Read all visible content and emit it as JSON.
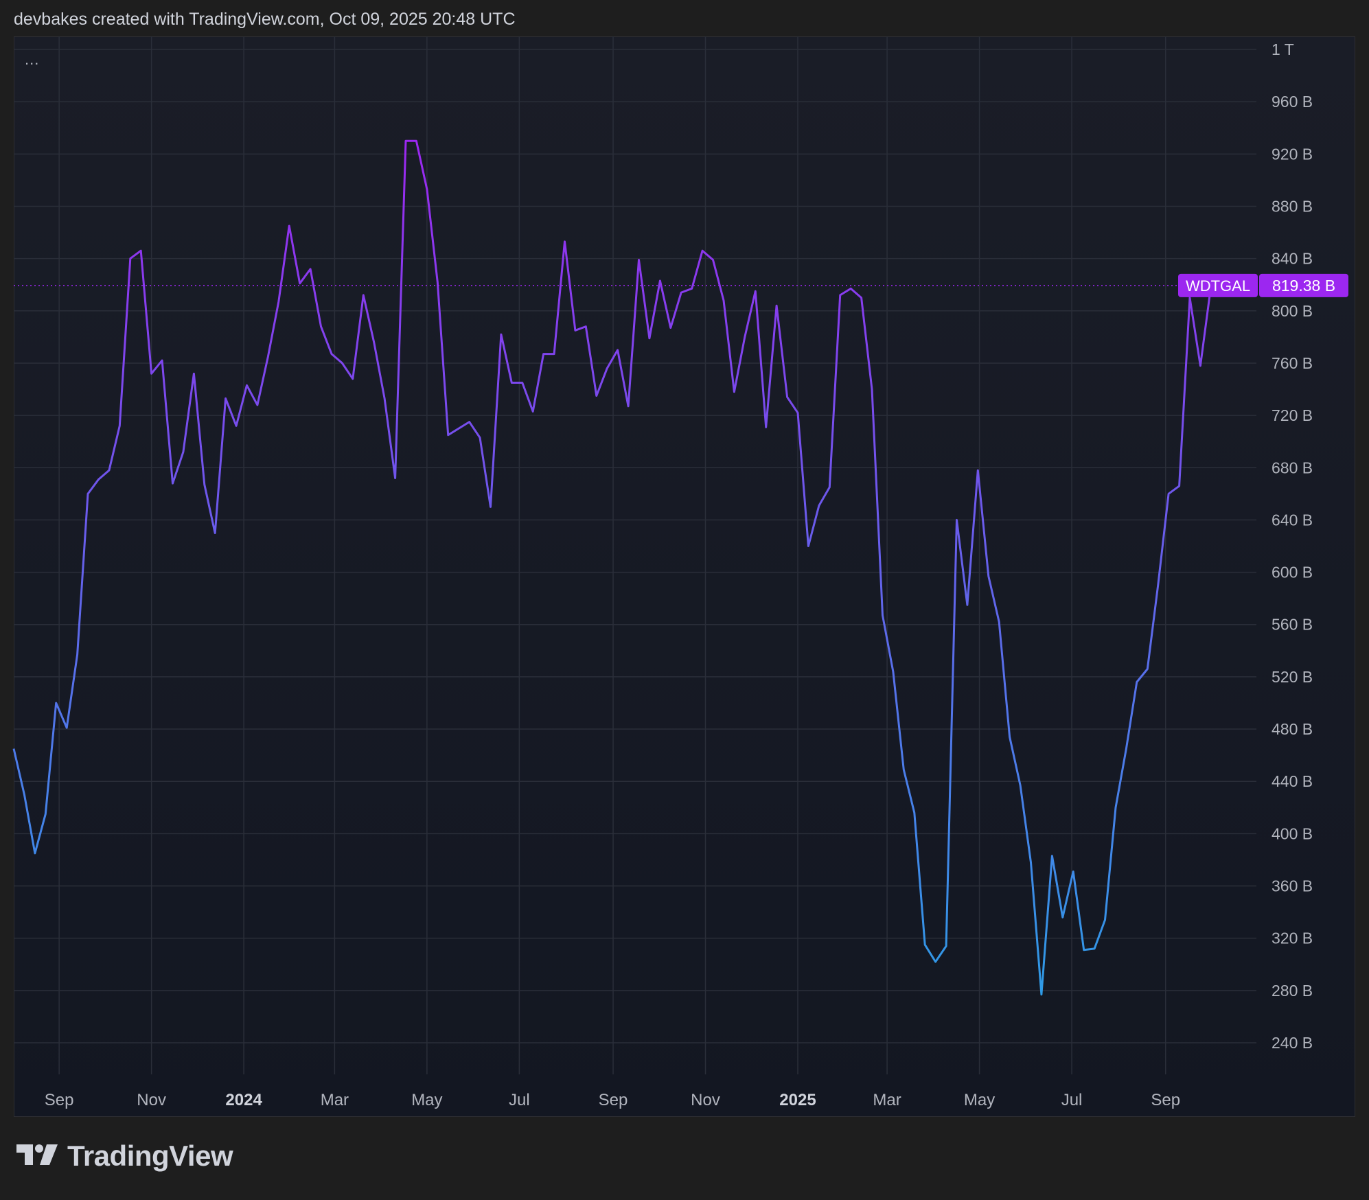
{
  "header": {
    "caption": "devbakes created with TradingView.com, Oct 09, 2025 20:48 UTC"
  },
  "toolbar": {
    "more_label": "..."
  },
  "brand": {
    "name": "TradingView",
    "icon": "tradingview-logo-icon"
  },
  "colors": {
    "background": "#1e1e1e",
    "pane": "#131722",
    "grid": "#2a2e39",
    "axis_text": "#b2b5be",
    "line_low": "#2e9be6",
    "line_high": "#9c27f0",
    "label_bg": "#9c27f0"
  },
  "chart_data": {
    "type": "line",
    "y_unit": "B",
    "ylim": [
      200,
      1010
    ],
    "y_ticks": [
      {
        "value": 1000,
        "label": "1 T"
      },
      {
        "value": 960,
        "label": "960 B"
      },
      {
        "value": 920,
        "label": "920 B"
      },
      {
        "value": 880,
        "label": "880 B"
      },
      {
        "value": 840,
        "label": "840 B"
      },
      {
        "value": 800,
        "label": "800 B"
      },
      {
        "value": 760,
        "label": "760 B"
      },
      {
        "value": 720,
        "label": "720 B"
      },
      {
        "value": 680,
        "label": "680 B"
      },
      {
        "value": 640,
        "label": "640 B"
      },
      {
        "value": 600,
        "label": "600 B"
      },
      {
        "value": 560,
        "label": "560 B"
      },
      {
        "value": 520,
        "label": "520 B"
      },
      {
        "value": 480,
        "label": "480 B"
      },
      {
        "value": 440,
        "label": "440 B"
      },
      {
        "value": 400,
        "label": "400 B"
      },
      {
        "value": 360,
        "label": "360 B"
      },
      {
        "value": 320,
        "label": "320 B"
      },
      {
        "value": 280,
        "label": "280 B"
      },
      {
        "value": 240,
        "label": "240 B"
      }
    ],
    "xlim": [
      "2023-08-02",
      "2025-10-31"
    ],
    "x_ticks": [
      {
        "date": "2023-09-01",
        "label": "Sep",
        "bold": false
      },
      {
        "date": "2023-11-01",
        "label": "Nov",
        "bold": false
      },
      {
        "date": "2024-01-01",
        "label": "2024",
        "bold": true
      },
      {
        "date": "2024-03-01",
        "label": "Mar",
        "bold": false
      },
      {
        "date": "2024-05-01",
        "label": "May",
        "bold": false
      },
      {
        "date": "2024-07-01",
        "label": "Jul",
        "bold": false
      },
      {
        "date": "2024-09-01",
        "label": "Sep",
        "bold": false
      },
      {
        "date": "2024-11-01",
        "label": "Nov",
        "bold": false
      },
      {
        "date": "2025-01-01",
        "label": "2025",
        "bold": true
      },
      {
        "date": "2025-03-01",
        "label": "Mar",
        "bold": false
      },
      {
        "date": "2025-05-01",
        "label": "May",
        "bold": false
      },
      {
        "date": "2025-07-01",
        "label": "Jul",
        "bold": false
      },
      {
        "date": "2025-09-01",
        "label": "Sep",
        "bold": false
      }
    ],
    "series": [
      {
        "name": "WDTGAL",
        "last_value": 819.38,
        "last_label": "819.38 B",
        "points": [
          [
            "2023-08-02",
            465
          ],
          [
            "2023-08-09",
            430
          ],
          [
            "2023-08-16",
            385
          ],
          [
            "2023-08-23",
            415
          ],
          [
            "2023-08-30",
            500
          ],
          [
            "2023-09-06",
            481
          ],
          [
            "2023-09-13",
            537
          ],
          [
            "2023-09-20",
            660
          ],
          [
            "2023-09-27",
            671
          ],
          [
            "2023-10-04",
            678
          ],
          [
            "2023-10-11",
            712
          ],
          [
            "2023-10-18",
            840
          ],
          [
            "2023-10-25",
            846
          ],
          [
            "2023-11-01",
            752
          ],
          [
            "2023-11-08",
            762
          ],
          [
            "2023-11-15",
            668
          ],
          [
            "2023-11-22",
            692
          ],
          [
            "2023-11-29",
            752
          ],
          [
            "2023-12-06",
            667
          ],
          [
            "2023-12-13",
            630
          ],
          [
            "2023-12-20",
            733
          ],
          [
            "2023-12-27",
            712
          ],
          [
            "2024-01-03",
            743
          ],
          [
            "2024-01-10",
            728
          ],
          [
            "2024-01-17",
            765
          ],
          [
            "2024-01-24",
            807
          ],
          [
            "2024-01-31",
            865
          ],
          [
            "2024-02-07",
            821
          ],
          [
            "2024-02-14",
            832
          ],
          [
            "2024-02-21",
            788
          ],
          [
            "2024-02-28",
            767
          ],
          [
            "2024-03-06",
            760
          ],
          [
            "2024-03-13",
            748
          ],
          [
            "2024-03-20",
            812
          ],
          [
            "2024-03-27",
            776
          ],
          [
            "2024-04-03",
            733
          ],
          [
            "2024-04-10",
            672
          ],
          [
            "2024-04-17",
            930
          ],
          [
            "2024-04-24",
            930
          ],
          [
            "2024-05-01",
            893
          ],
          [
            "2024-05-08",
            822
          ],
          [
            "2024-05-15",
            705
          ],
          [
            "2024-05-22",
            710
          ],
          [
            "2024-05-29",
            715
          ],
          [
            "2024-06-05",
            703
          ],
          [
            "2024-06-12",
            650
          ],
          [
            "2024-06-19",
            782
          ],
          [
            "2024-06-26",
            745
          ],
          [
            "2024-07-03",
            745
          ],
          [
            "2024-07-10",
            723
          ],
          [
            "2024-07-17",
            767
          ],
          [
            "2024-07-24",
            767
          ],
          [
            "2024-07-31",
            853
          ],
          [
            "2024-08-07",
            785
          ],
          [
            "2024-08-14",
            788
          ],
          [
            "2024-08-21",
            735
          ],
          [
            "2024-08-28",
            756
          ],
          [
            "2024-09-04",
            770
          ],
          [
            "2024-09-11",
            727
          ],
          [
            "2024-09-18",
            839
          ],
          [
            "2024-09-25",
            779
          ],
          [
            "2024-10-02",
            823
          ],
          [
            "2024-10-09",
            787
          ],
          [
            "2024-10-16",
            814
          ],
          [
            "2024-10-23",
            817
          ],
          [
            "2024-10-30",
            846
          ],
          [
            "2024-11-06",
            839
          ],
          [
            "2024-11-13",
            808
          ],
          [
            "2024-11-20",
            738
          ],
          [
            "2024-11-27",
            780
          ],
          [
            "2024-12-04",
            815
          ],
          [
            "2024-12-11",
            711
          ],
          [
            "2024-12-18",
            804
          ],
          [
            "2024-12-25",
            734
          ],
          [
            "2025-01-01",
            722
          ],
          [
            "2025-01-08",
            620
          ],
          [
            "2025-01-15",
            651
          ],
          [
            "2025-01-22",
            665
          ],
          [
            "2025-01-29",
            812
          ],
          [
            "2025-02-05",
            817
          ],
          [
            "2025-02-12",
            810
          ],
          [
            "2025-02-19",
            740
          ],
          [
            "2025-02-26",
            567
          ],
          [
            "2025-03-05",
            524
          ],
          [
            "2025-03-12",
            449
          ],
          [
            "2025-03-19",
            416
          ],
          [
            "2025-03-26",
            315
          ],
          [
            "2025-04-02",
            302
          ],
          [
            "2025-04-09",
            314
          ],
          [
            "2025-04-16",
            640
          ],
          [
            "2025-04-23",
            575
          ],
          [
            "2025-04-30",
            678
          ],
          [
            "2025-05-07",
            597
          ],
          [
            "2025-05-14",
            562
          ],
          [
            "2025-05-21",
            474
          ],
          [
            "2025-05-28",
            437
          ],
          [
            "2025-06-04",
            378
          ],
          [
            "2025-06-11",
            277
          ],
          [
            "2025-06-18",
            383
          ],
          [
            "2025-06-25",
            336
          ],
          [
            "2025-07-02",
            371
          ],
          [
            "2025-07-09",
            311
          ],
          [
            "2025-07-16",
            312
          ],
          [
            "2025-07-23",
            334
          ],
          [
            "2025-07-30",
            420
          ],
          [
            "2025-08-06",
            465
          ],
          [
            "2025-08-13",
            516
          ],
          [
            "2025-08-20",
            526
          ],
          [
            "2025-08-27",
            590
          ],
          [
            "2025-09-03",
            660
          ],
          [
            "2025-09-10",
            666
          ],
          [
            "2025-09-17",
            810
          ],
          [
            "2025-09-24",
            758
          ],
          [
            "2025-10-01",
            819.38
          ]
        ]
      }
    ]
  }
}
